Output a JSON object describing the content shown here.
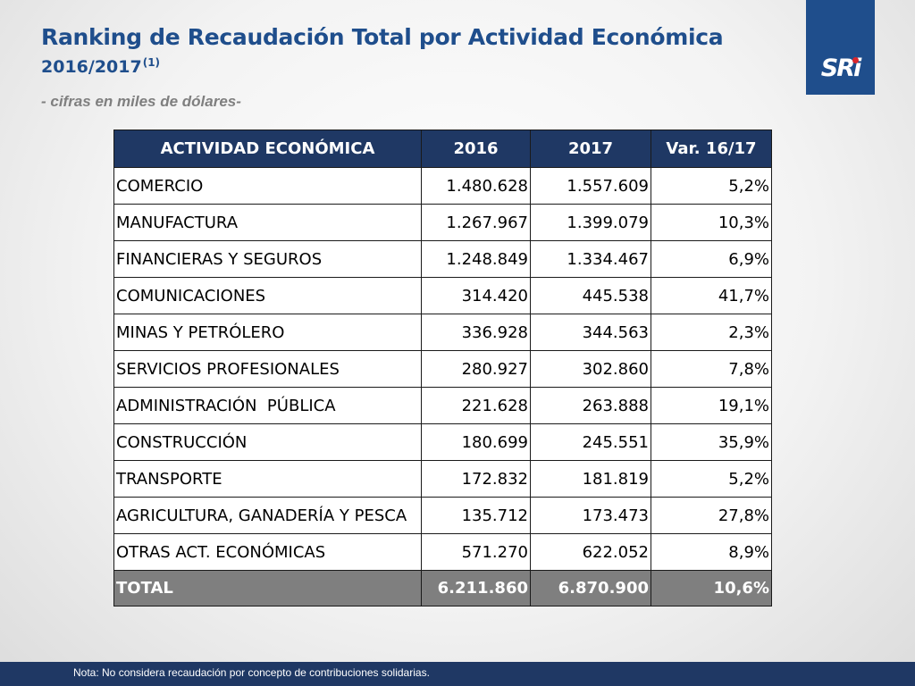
{
  "header": {
    "title": "Ranking de Recaudación Total por Actividad Económica",
    "subtitle": "2016/2017",
    "subtitle_note": "(1)",
    "units": "- cifras en miles de dólares-"
  },
  "logo": {
    "text": "SRi",
    "color": "#1f4e8c",
    "dot_color": "#d9262c"
  },
  "table": {
    "headers": [
      "ACTIVIDAD ECONÓMICA",
      "2016",
      "2017",
      "Var. 16/17"
    ],
    "rows": [
      [
        "COMERCIO",
        "1.480.628",
        "1.557.609",
        "5,2%"
      ],
      [
        "MANUFACTURA",
        "1.267.967",
        "1.399.079",
        "10,3%"
      ],
      [
        "FINANCIERAS Y SEGUROS",
        "1.248.849",
        "1.334.467",
        "6,9%"
      ],
      [
        "COMUNICACIONES",
        "314.420",
        "445.538",
        "41,7%"
      ],
      [
        "MINAS Y PETRÓLERO",
        "336.928",
        "344.563",
        "2,3%"
      ],
      [
        "SERVICIOS PROFESIONALES",
        "280.927",
        "302.860",
        "7,8%"
      ],
      [
        "ADMINISTRACIÓN  PÚBLICA",
        "221.628",
        "263.888",
        "19,1%"
      ],
      [
        "CONSTRUCCIÓN",
        "180.699",
        "245.551",
        "35,9%"
      ],
      [
        "TRANSPORTE",
        "172.832",
        "181.819",
        "5,2%"
      ],
      [
        "AGRICULTURA, GANADERÍA Y PESCA",
        "135.712",
        "173.473",
        "27,8%"
      ],
      [
        "OTRAS ACT. ECONÓMICAS",
        "571.270",
        "622.052",
        "8,9%"
      ]
    ],
    "total": [
      "TOTAL",
      "6.211.860",
      "6.870.900",
      "10,6%"
    ]
  },
  "footer": {
    "note": "Nota: No considera recaudación por concepto de contribuciones solidarias."
  },
  "colors": {
    "title": "#1f4e8c",
    "header_bg": "#1f3864",
    "total_bg": "#7f7f7f",
    "footer_bg": "#1f3864"
  }
}
